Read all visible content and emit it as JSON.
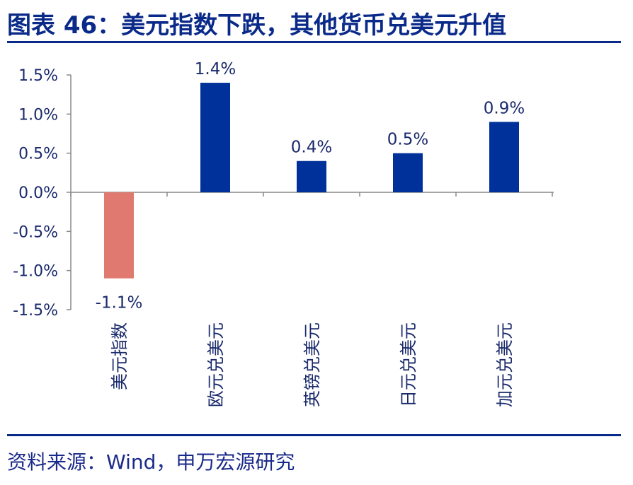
{
  "header": {
    "title": "图表 46：美元指数下跌，其他货币兑美元升值"
  },
  "footer": {
    "source": "资料来源：Wind，申万宏源研究"
  },
  "colors": {
    "negative_bar": "#E07A70",
    "positive_bar": "#00309A",
    "text": "#1a2a6c",
    "title": "#0a2a8a",
    "axis": "#888888"
  },
  "chart_data": {
    "type": "bar",
    "categories": [
      "美元指数",
      "欧元兑美元",
      "英镑兑美元",
      "日元兑美元",
      "加元兑美元"
    ],
    "values": [
      -1.1,
      1.4,
      0.4,
      0.5,
      0.9
    ],
    "value_labels": [
      "-1.1%",
      "1.4%",
      "0.4%",
      "0.5%",
      "0.9%"
    ],
    "yticks": [
      "1.5%",
      "1.0%",
      "0.5%",
      "0.0%",
      "-0.5%",
      "-1.0%",
      "-1.5%"
    ],
    "ytick_values": [
      1.5,
      1.0,
      0.5,
      0.0,
      -0.5,
      -1.0,
      -1.5
    ],
    "ylim": [
      -1.5,
      1.5
    ],
    "title": "",
    "xlabel": "",
    "ylabel": "",
    "grid": false,
    "legend": "none"
  }
}
